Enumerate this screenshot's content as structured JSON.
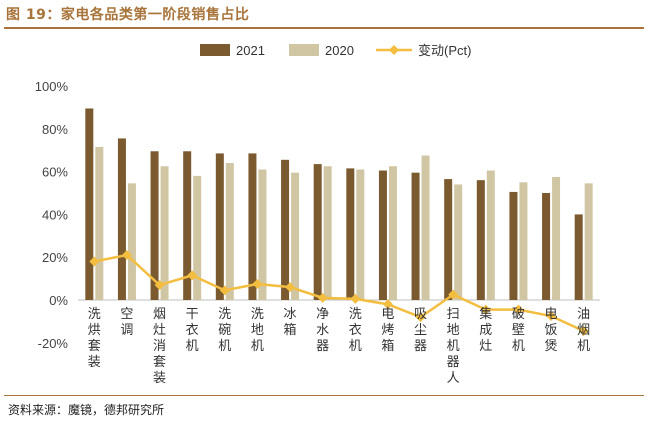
{
  "header": {
    "title": "图 19：家电各品类第一阶段销售占比"
  },
  "footer": {
    "source": "资料来源：魔镜，德邦研究所"
  },
  "colors": {
    "bar_2021": "#7a5a2e",
    "bar_2020": "#d1c6a4",
    "line": "#f3bd3f",
    "accent": "#a8743a"
  },
  "chart_data": {
    "type": "bar",
    "categories": [
      "洗烘套装",
      "空调",
      "烟灶消套装",
      "干衣机",
      "洗碗机",
      "洗地机",
      "冰箱",
      "净水器",
      "洗衣机",
      "电烤箱",
      "吸尘器",
      "扫地机器人",
      "集成灶",
      "破壁机",
      "电饭煲",
      "油烟机"
    ],
    "series": [
      {
        "name": "2021",
        "kind": "bar",
        "values": [
          89.5,
          75.5,
          69.5,
          69.5,
          68.5,
          68.5,
          65.5,
          63.5,
          61.5,
          60.5,
          59.5,
          56.5,
          56,
          50.5,
          50,
          40
        ]
      },
      {
        "name": "2020",
        "kind": "bar",
        "values": [
          71.5,
          54.5,
          62.5,
          58,
          64,
          61,
          59.5,
          62.5,
          61,
          62.5,
          67.5,
          54,
          60.5,
          55,
          57.5,
          54.5
        ]
      },
      {
        "name": "变动(Pct)",
        "kind": "line",
        "values": [
          18,
          21,
          7,
          11.5,
          4.5,
          7.5,
          6,
          1,
          0.5,
          -2,
          -8,
          2.5,
          -4.5,
          -4.5,
          -7.5,
          -14.5
        ]
      }
    ],
    "y_ticks": [
      "100%",
      "80%",
      "60%",
      "40%",
      "20%",
      "0%",
      "-20%"
    ],
    "ylim": [
      -20,
      100
    ],
    "legend_position": "top-center"
  }
}
